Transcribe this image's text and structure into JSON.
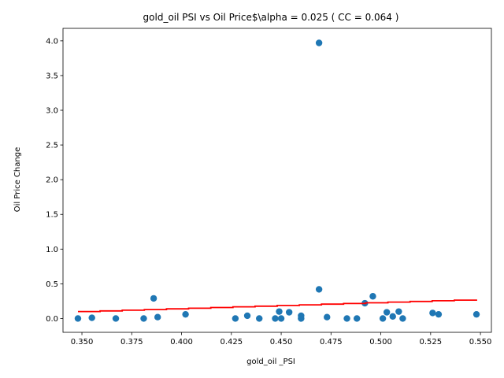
{
  "chart_data": {
    "type": "scatter",
    "title": "gold_oil  PSI vs Oil Price$\\alpha = 0.025 ( CC = 0.064 )",
    "xlabel": "gold_oil _PSI",
    "ylabel": "Oil Price Change",
    "xlim": [
      0.3405,
      0.5555
    ],
    "ylim": [
      -0.199,
      4.18
    ],
    "x_ticks": [
      "0.350",
      "0.375",
      "0.400",
      "0.425",
      "0.450",
      "0.475",
      "0.500",
      "0.525",
      "0.550"
    ],
    "x_tick_values": [
      0.35,
      0.375,
      0.4,
      0.425,
      0.45,
      0.475,
      0.5,
      0.525,
      0.55
    ],
    "y_ticks": [
      "0.0",
      "0.5",
      "1.0",
      "1.5",
      "2.0",
      "2.5",
      "3.0",
      "3.5",
      "4.0"
    ],
    "y_tick_values": [
      0.0,
      0.5,
      1.0,
      1.5,
      2.0,
      2.5,
      3.0,
      3.5,
      4.0
    ],
    "grid": false,
    "points": [
      {
        "x": 0.348,
        "y": 0.0
      },
      {
        "x": 0.355,
        "y": 0.01
      },
      {
        "x": 0.367,
        "y": 0.0
      },
      {
        "x": 0.381,
        "y": 0.0
      },
      {
        "x": 0.386,
        "y": 0.29
      },
      {
        "x": 0.388,
        "y": 0.02
      },
      {
        "x": 0.402,
        "y": 0.06
      },
      {
        "x": 0.427,
        "y": 0.0
      },
      {
        "x": 0.433,
        "y": 0.04
      },
      {
        "x": 0.439,
        "y": 0.0
      },
      {
        "x": 0.447,
        "y": 0.0
      },
      {
        "x": 0.449,
        "y": 0.1
      },
      {
        "x": 0.45,
        "y": 0.0
      },
      {
        "x": 0.454,
        "y": 0.09
      },
      {
        "x": 0.46,
        "y": 0.0
      },
      {
        "x": 0.46,
        "y": 0.04
      },
      {
        "x": 0.469,
        "y": 3.97
      },
      {
        "x": 0.469,
        "y": 0.42
      },
      {
        "x": 0.473,
        "y": 0.02
      },
      {
        "x": 0.483,
        "y": 0.0
      },
      {
        "x": 0.488,
        "y": 0.0
      },
      {
        "x": 0.492,
        "y": 0.22
      },
      {
        "x": 0.496,
        "y": 0.32
      },
      {
        "x": 0.501,
        "y": 0.0
      },
      {
        "x": 0.503,
        "y": 0.09
      },
      {
        "x": 0.506,
        "y": 0.03
      },
      {
        "x": 0.509,
        "y": 0.1
      },
      {
        "x": 0.511,
        "y": 0.0
      },
      {
        "x": 0.526,
        "y": 0.08
      },
      {
        "x": 0.529,
        "y": 0.06
      },
      {
        "x": 0.548,
        "y": 0.06
      }
    ],
    "fit_line": {
      "x": [
        0.348,
        0.548
      ],
      "y": [
        0.1,
        0.275
      ]
    },
    "colors": {
      "points": "#1f77b4",
      "fit_line": "#ff0000"
    }
  }
}
